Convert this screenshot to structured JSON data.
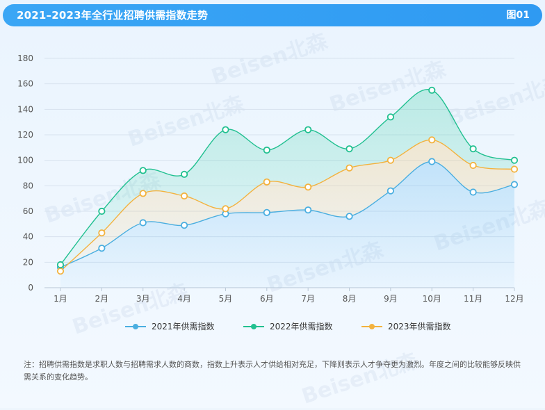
{
  "header": {
    "title": "2021–2023年全行业招聘供需指数走势",
    "tag": "图01"
  },
  "chart_data": {
    "type": "area",
    "categories": [
      "1月",
      "2月",
      "3月",
      "4月",
      "5月",
      "6月",
      "7月",
      "8月",
      "9月",
      "10月",
      "11月",
      "12月"
    ],
    "ylim": [
      0,
      180
    ],
    "yticks": [
      0,
      20,
      40,
      60,
      80,
      100,
      120,
      140,
      160,
      180
    ],
    "grid": true,
    "legend_position": "bottom",
    "series": [
      {
        "name": "2021年供需指数",
        "color": "#4aaee0",
        "values": [
          16,
          31,
          51,
          49,
          58,
          59,
          61,
          56,
          76,
          99,
          75,
          81
        ]
      },
      {
        "name": "2022年供需指数",
        "color": "#21c090",
        "values": [
          18,
          60,
          92,
          89,
          124,
          108,
          124,
          109,
          134,
          155,
          109,
          100
        ]
      },
      {
        "name": "2023年供需指数",
        "color": "#f3b23e",
        "values": [
          13,
          43,
          74,
          72,
          62,
          83,
          79,
          94,
          100,
          116,
          96,
          93
        ]
      }
    ]
  },
  "note": "注：招聘供需指数是求职人数与招聘需求人数的商数，指数上升表示人才供给相对充足，下降则表示人才争夺更为激烈。年度之间的比较能够反映供需关系的变化趋势。",
  "watermark": "Beisen北森"
}
